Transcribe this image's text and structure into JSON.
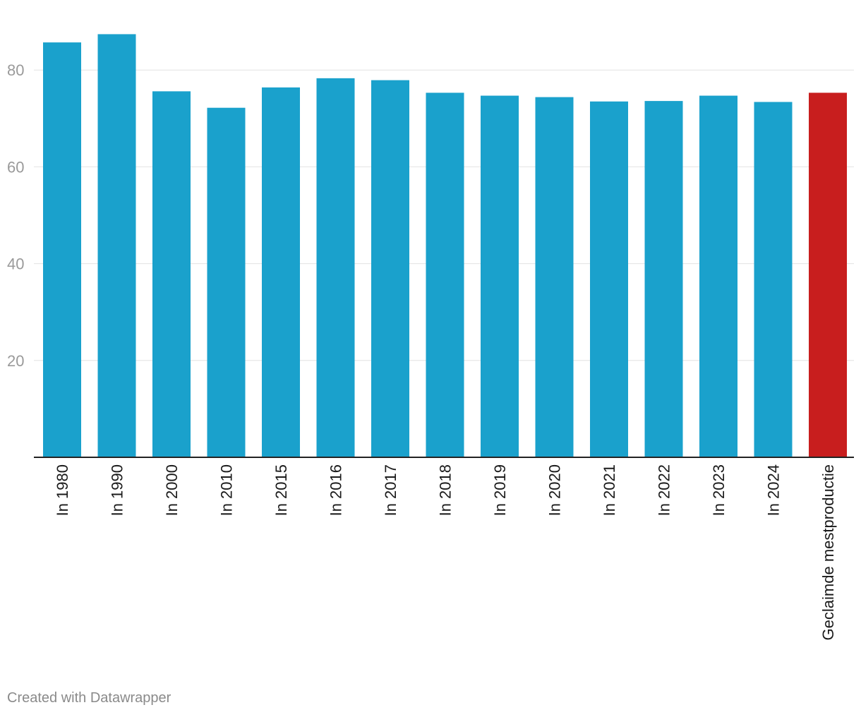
{
  "chart_data": {
    "type": "bar",
    "categories": [
      "In 1980",
      "In 1990",
      "In 2000",
      "In 2010",
      "In 2015",
      "In 2016",
      "In 2017",
      "In 2018",
      "In 2019",
      "In 2020",
      "In 2021",
      "In 2022",
      "In 2023",
      "In 2024",
      "Geclaimde mestproductie"
    ],
    "values": [
      85.7,
      87.4,
      75.6,
      72.2,
      76.4,
      78.3,
      77.9,
      75.3,
      74.7,
      74.4,
      73.5,
      73.6,
      74.7,
      73.4,
      75.3
    ],
    "colors": [
      "#1aa1cc",
      "#1aa1cc",
      "#1aa1cc",
      "#1aa1cc",
      "#1aa1cc",
      "#1aa1cc",
      "#1aa1cc",
      "#1aa1cc",
      "#1aa1cc",
      "#1aa1cc",
      "#1aa1cc",
      "#1aa1cc",
      "#1aa1cc",
      "#1aa1cc",
      "#c81e1e"
    ],
    "yticks": [
      20,
      40,
      60,
      80
    ],
    "ylim": [
      0,
      89
    ],
    "grid": true,
    "title": "",
    "xlabel": "",
    "ylabel": ""
  },
  "footer": {
    "credit": "Created with Datawrapper"
  }
}
